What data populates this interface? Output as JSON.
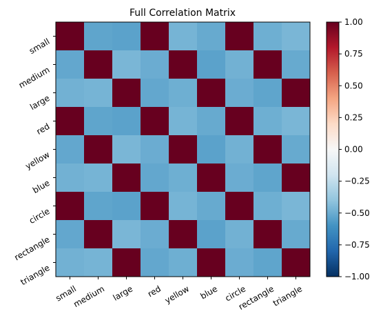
{
  "chart_data": {
    "type": "heatmap",
    "title": "Full Correlation Matrix",
    "xlabel": "",
    "ylabel": "",
    "labels": [
      "small",
      "medium",
      "large",
      "red",
      "yellow",
      "blue",
      "circle",
      "rectangle",
      "triangle"
    ],
    "values": [
      [
        1.0,
        -0.5,
        -0.5,
        1.0,
        -0.5,
        -0.5,
        1.0,
        -0.5,
        -0.5
      ],
      [
        -0.5,
        1.0,
        -0.5,
        -0.5,
        1.0,
        -0.5,
        -0.5,
        1.0,
        -0.5
      ],
      [
        -0.5,
        -0.5,
        1.0,
        -0.5,
        -0.5,
        1.0,
        -0.5,
        -0.5,
        1.0
      ],
      [
        1.0,
        -0.5,
        -0.5,
        1.0,
        -0.5,
        -0.5,
        1.0,
        -0.5,
        -0.5
      ],
      [
        -0.5,
        1.0,
        -0.5,
        -0.5,
        1.0,
        -0.5,
        -0.5,
        1.0,
        -0.5
      ],
      [
        -0.5,
        -0.5,
        1.0,
        -0.5,
        -0.5,
        1.0,
        -0.5,
        -0.5,
        1.0
      ],
      [
        1.0,
        -0.5,
        -0.5,
        1.0,
        -0.5,
        -0.5,
        1.0,
        -0.5,
        -0.5
      ],
      [
        -0.5,
        1.0,
        -0.5,
        -0.5,
        1.0,
        -0.5,
        -0.5,
        1.0,
        -0.5
      ],
      [
        -0.5,
        -0.5,
        1.0,
        -0.5,
        -0.5,
        1.0,
        -0.5,
        -0.5,
        1.0
      ]
    ],
    "colorbar": {
      "range": [
        -1.0,
        1.0
      ],
      "ticks": [
        "-1.00",
        "-0.75",
        "-0.50",
        "-0.25",
        "0.00",
        "0.25",
        "0.50",
        "0.75",
        "1.00"
      ],
      "colormap": "RdBu_r"
    },
    "grid": false,
    "colors": {
      "high": "#67001f",
      "low": "#053061",
      "mid": "#f7f7f7"
    }
  }
}
